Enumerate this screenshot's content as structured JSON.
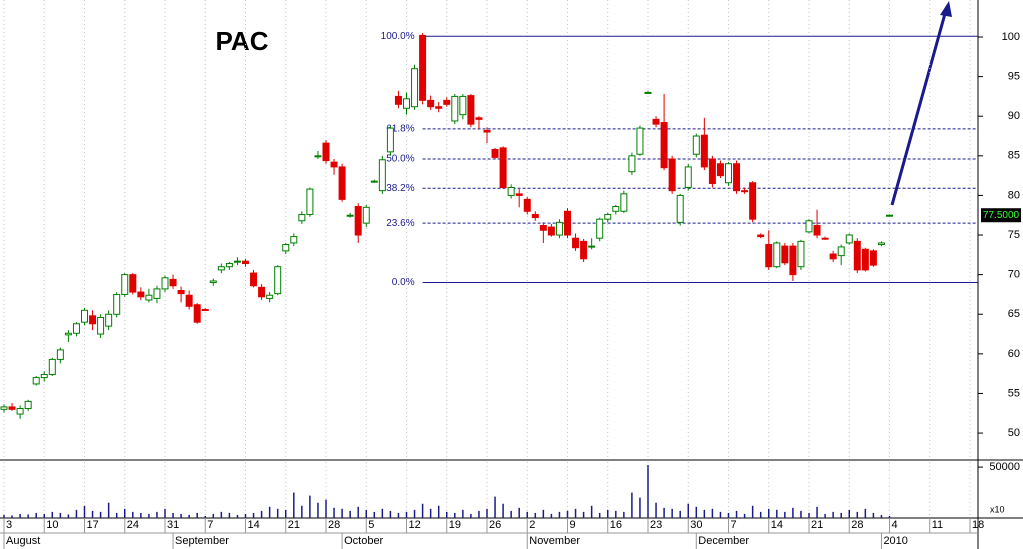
{
  "chart_data": {
    "type": "candlestick",
    "title": "PAC",
    "categories": [
      "3",
      null,
      null,
      null,
      null,
      "10",
      null,
      null,
      null,
      null,
      "17",
      null,
      null,
      null,
      null,
      "24",
      null,
      null,
      null,
      null,
      "31",
      null,
      null,
      null,
      null,
      "7",
      null,
      null,
      null,
      null,
      "14",
      null,
      null,
      null,
      null,
      "21",
      null,
      null,
      null,
      null,
      "28",
      null,
      null,
      null,
      null,
      "5",
      null,
      null,
      null,
      null,
      "12",
      null,
      null,
      null,
      null,
      "19",
      null,
      null,
      null,
      null,
      "26",
      null,
      null,
      null,
      null,
      "2",
      null,
      null,
      null,
      null,
      "9",
      null,
      null,
      null,
      null,
      "16",
      null,
      null,
      null,
      null,
      "23",
      null,
      null,
      null,
      null,
      "30",
      null,
      null,
      null,
      null,
      "7",
      null,
      null,
      null,
      null,
      "14",
      null,
      null,
      null,
      null,
      "21",
      null,
      null,
      null,
      null,
      "28",
      null,
      null,
      null,
      null,
      "4",
      null,
      null,
      null,
      null,
      "11",
      null,
      null,
      null,
      null,
      "18"
    ],
    "periods": [
      {
        "label": "August",
        "start": 0
      },
      {
        "label": "September",
        "start": 21
      },
      {
        "label": "October",
        "start": 42
      },
      {
        "label": "November",
        "start": 65
      },
      {
        "label": "December",
        "start": 86
      },
      {
        "label": "2010",
        "start": 109
      }
    ],
    "open": [
      53.0,
      53.3,
      52.4,
      53.1,
      56.2,
      57.0,
      57.4,
      59.3,
      62.4,
      62.6,
      64.0,
      64.8,
      62.5,
      63.5,
      65.0,
      67.5,
      70.0,
      67.8,
      66.8,
      67.0,
      68.2,
      69.4,
      68.0,
      67.4,
      66.2,
      65.6,
      69.0,
      70.6,
      71.0,
      71.6,
      71.7,
      70.2,
      68.4,
      67.0,
      67.6,
      73.0,
      74.0,
      76.8,
      77.6,
      85.0,
      86.6,
      84.2,
      83.6,
      77.4,
      78.6,
      76.5,
      81.8,
      80.6,
      85.5,
      92.5,
      91.0,
      91.2,
      100.2,
      92.0,
      91.2,
      92.0,
      89.4,
      90.2,
      92.6,
      89.8,
      88.2,
      85.8,
      86.0,
      80.0,
      80.2,
      79.5,
      77.6,
      76.2,
      76.0,
      75.0,
      78.0,
      74.6,
      74.2,
      73.5,
      74.6,
      77.0,
      78.0,
      78.0,
      83.0,
      85.2,
      93.0,
      89.6,
      89.2,
      84.6,
      76.6,
      81.0,
      85.2,
      87.6,
      84.6,
      84.0,
      81.6,
      84.0,
      80.6,
      81.6,
      75.0,
      73.8,
      71.0,
      73.6,
      73.6,
      71.0,
      75.4,
      76.2,
      74.6,
      72.6,
      72.4,
      74.0,
      74.2,
      73.2,
      73.0,
      73.8,
      77.5,
      null,
      null,
      null,
      null,
      null,
      null,
      null,
      null,
      null,
      null
    ],
    "high": [
      53.6,
      53.8,
      53.5,
      54.2,
      57.2,
      57.8,
      59.5,
      60.8,
      63.0,
      64.0,
      65.8,
      65.5,
      65.0,
      65.5,
      67.8,
      70.2,
      70.2,
      68.4,
      68.2,
      68.6,
      69.9,
      70.0,
      68.5,
      68.0,
      66.4,
      65.8,
      69.5,
      71.4,
      71.6,
      72.2,
      72.0,
      70.6,
      68.8,
      67.8,
      71.2,
      74.0,
      75.2,
      78.0,
      81.0,
      85.6,
      87.0,
      84.6,
      84.0,
      77.8,
      79.0,
      78.8,
      82.0,
      85.0,
      88.8,
      93.2,
      93.0,
      96.5,
      100.5,
      92.6,
      91.8,
      92.4,
      92.8,
      92.8,
      92.8,
      90.0,
      88.6,
      86.0,
      86.2,
      81.4,
      80.8,
      79.8,
      78.0,
      76.6,
      76.4,
      77.0,
      78.4,
      75.2,
      74.5,
      74.6,
      77.2,
      77.8,
      78.8,
      80.6,
      85.4,
      88.8,
      93.2,
      90.0,
      92.8,
      85.0,
      80.2,
      84.0,
      87.8,
      89.8,
      85.0,
      84.4,
      84.2,
      84.4,
      81.0,
      81.8,
      75.2,
      75.6,
      74.2,
      74.0,
      74.0,
      74.4,
      77.0,
      78.2,
      74.8,
      73.0,
      73.8,
      75.2,
      74.6,
      73.4,
      73.2,
      74.2,
      77.6,
      null,
      null,
      null,
      null,
      null,
      null,
      null,
      null,
      null,
      null
    ],
    "low": [
      52.6,
      52.8,
      51.8,
      52.8,
      56.0,
      56.5,
      57.2,
      58.8,
      61.5,
      62.2,
      63.6,
      63.0,
      62.0,
      63.0,
      64.6,
      67.2,
      67.5,
      66.8,
      66.5,
      66.4,
      67.8,
      68.2,
      66.5,
      65.6,
      63.8,
      65.4,
      68.6,
      70.2,
      70.6,
      71.2,
      71.0,
      68.4,
      66.8,
      66.5,
      67.4,
      72.6,
      73.6,
      76.4,
      77.3,
      84.6,
      84.0,
      82.6,
      79.2,
      77.2,
      74.0,
      76.0,
      81.6,
      80.2,
      85.0,
      91.0,
      90.2,
      90.8,
      91.5,
      90.8,
      90.5,
      91.2,
      89.0,
      89.6,
      88.6,
      88.4,
      86.6,
      84.6,
      80.8,
      79.6,
      78.5,
      77.6,
      76.8,
      74.0,
      74.8,
      74.6,
      74.6,
      73.0,
      71.6,
      73.2,
      74.2,
      76.6,
      77.6,
      77.8,
      82.6,
      85.0,
      92.8,
      88.6,
      83.2,
      80.2,
      76.2,
      80.6,
      84.8,
      83.2,
      81.0,
      82.2,
      81.2,
      80.2,
      80.2,
      76.6,
      74.6,
      70.6,
      70.8,
      71.2,
      69.2,
      70.6,
      75.2,
      74.6,
      74.4,
      71.6,
      71.2,
      73.8,
      70.2,
      70.4,
      71.0,
      73.6,
      77.4,
      null,
      null,
      null,
      null,
      null,
      null,
      null,
      null,
      null,
      null
    ],
    "close": [
      53.3,
      53.0,
      53.1,
      54.0,
      57.0,
      57.4,
      59.3,
      60.5,
      62.6,
      63.8,
      65.5,
      63.8,
      64.6,
      65.0,
      67.5,
      70.0,
      67.8,
      67.2,
      67.4,
      68.2,
      69.6,
      68.6,
      67.6,
      66.0,
      64.0,
      65.5,
      69.2,
      71.0,
      71.4,
      71.7,
      71.4,
      68.6,
      67.2,
      67.4,
      71.0,
      73.8,
      74.8,
      77.6,
      80.8,
      85.0,
      84.4,
      83.6,
      79.5,
      77.5,
      75.0,
      78.5,
      81.8,
      84.5,
      88.5,
      91.5,
      92.2,
      96.0,
      92.0,
      91.2,
      91.0,
      91.5,
      92.5,
      92.5,
      89.0,
      89.6,
      88.0,
      84.8,
      81.0,
      81.0,
      80.0,
      78.0,
      77.2,
      75.6,
      75.0,
      76.6,
      75.0,
      73.4,
      72.0,
      73.6,
      77.0,
      77.6,
      78.6,
      80.2,
      85.0,
      88.5,
      93.0,
      89.0,
      83.5,
      80.6,
      80.0,
      83.6,
      87.5,
      83.6,
      81.5,
      82.5,
      84.0,
      80.6,
      80.5,
      77.0,
      74.8,
      71.0,
      74.0,
      71.5,
      70.0,
      74.2,
      76.8,
      75.0,
      74.5,
      72.0,
      73.5,
      75.0,
      70.6,
      70.6,
      71.2,
      74.0,
      77.5,
      null,
      null,
      null,
      null,
      null,
      null,
      null,
      null,
      null,
      null
    ],
    "volume": [
      3000,
      2500,
      4000,
      3500,
      5000,
      4000,
      6000,
      5000,
      3500,
      8000,
      12000,
      7000,
      6000,
      15000,
      5000,
      9000,
      6000,
      5000,
      4000,
      6000,
      9000,
      5000,
      4000,
      3000,
      5000,
      2000,
      4000,
      6000,
      5000,
      3000,
      4000,
      5000,
      7000,
      11000,
      9000,
      8000,
      25000,
      12000,
      22000,
      15000,
      18000,
      10000,
      9000,
      7000,
      11000,
      8000,
      6000,
      9000,
      7000,
      5000,
      6000,
      8000,
      14000,
      9000,
      12000,
      6000,
      5000,
      8000,
      4000,
      7000,
      9000,
      21000,
      14000,
      7000,
      10000,
      6000,
      5000,
      8000,
      4000,
      6000,
      7000,
      9000,
      6000,
      12000,
      5000,
      8000,
      7000,
      6000,
      25000,
      20000,
      52000,
      15000,
      10000,
      9000,
      7000,
      14000,
      11000,
      8000,
      9000,
      6000,
      5000,
      7000,
      4000,
      12000,
      6000,
      9000,
      8000,
      6000,
      10000,
      7000,
      5000,
      11000,
      4000,
      6000,
      5000,
      8000,
      6000,
      9000,
      5000,
      3000,
      2000,
      null,
      null,
      null,
      null,
      null,
      null,
      null,
      null,
      null,
      null
    ],
    "ylim": [
      46.6,
      104.67
    ],
    "yticks": [
      50,
      55,
      60,
      65,
      70,
      75,
      80,
      85,
      90,
      95,
      100
    ],
    "y2lim": [
      0,
      55000
    ],
    "y2ticks": [
      50000
    ],
    "volume_multiplier": "x10",
    "last_price": {
      "value": 77.5,
      "label": "77.5000"
    },
    "fib_levels": [
      {
        "value": 100.1,
        "label": "100.0%"
      },
      {
        "value": 88.4,
        "label": "61.8%"
      },
      {
        "value": 84.6,
        "label": "50.0%"
      },
      {
        "value": 80.9,
        "label": "38.2%"
      },
      {
        "value": 76.5,
        "label": "23.6%"
      },
      {
        "value": 69.0,
        "label": "0.0%"
      }
    ],
    "colors": {
      "up": "#008000",
      "down": "#e00000",
      "volume": "#1a1a8c",
      "fib": "#1a1a8c",
      "title": "#e040e0"
    },
    "grid": true
  }
}
